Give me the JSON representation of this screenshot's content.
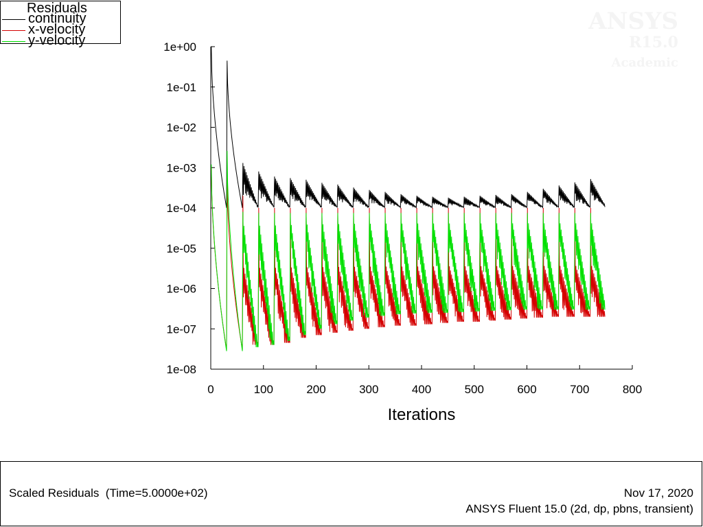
{
  "legend": {
    "title": "Residuals",
    "items": [
      {
        "label": "continuity",
        "color": "#000000"
      },
      {
        "label": "x-velocity",
        "color": "#d40000"
      },
      {
        "label": "y-velocity",
        "color": "#00e000"
      }
    ]
  },
  "watermark": {
    "brand": "ANSYS",
    "version": "R15.0",
    "edition": "Academic"
  },
  "footer": {
    "left": "Scaled Residuals  (Time=5.0000e+02)",
    "date": "Nov 17, 2020",
    "version": "ANSYS Fluent 15.0 (2d, dp, pbns, transient)"
  },
  "chart_data": {
    "type": "line",
    "xlabel": "Iterations",
    "ylabel": "",
    "xlim": [
      0,
      800
    ],
    "ylim": [
      1e-08,
      1
    ],
    "yscale": "log",
    "xticks": [
      0,
      100,
      200,
      300,
      400,
      500,
      600,
      700,
      800
    ],
    "yticks": [
      1,
      0.1,
      0.01,
      0.001,
      0.0001,
      1e-05,
      1e-06,
      1e-07,
      1e-08
    ],
    "ytick_labels": [
      "1e+00",
      "1e-01",
      "1e-02",
      "1e-03",
      "1e-04",
      "1e-05",
      "1e-06",
      "1e-07",
      "1e-08"
    ],
    "grid": false,
    "legend_position": "top-left",
    "time_steps": 25,
    "iterations_per_step": 30,
    "series": [
      {
        "name": "continuity",
        "color": "#000000",
        "step_peaks": [
          1,
          0.45,
          0.0013,
          0.0008,
          0.0006,
          0.00055,
          0.0005,
          0.00042,
          0.00038,
          0.00032,
          0.00028,
          0.00025,
          0.00022,
          0.0002,
          0.00019,
          0.00018,
          0.00019,
          0.0002,
          0.00021,
          0.00022,
          0.00025,
          0.0003,
          0.00036,
          0.00043,
          0.00052
        ],
        "step_troughs": [
          0.0001,
          0.0001,
          0.0001,
          0.0001,
          0.0001,
          0.0001,
          0.0001,
          0.0001,
          0.0001,
          0.0001,
          0.0001,
          0.0001,
          0.0001,
          0.0001,
          0.0001,
          0.0001,
          0.0001,
          0.0001,
          0.0001,
          0.0001,
          0.0001,
          0.0001,
          0.0001,
          0.0001,
          0.0001
        ],
        "sub_peak_range": [
          0.0003,
          0.0008
        ]
      },
      {
        "name": "x-velocity",
        "color": "#d40000",
        "step_peaks": [
          0.001,
          0.0006,
          0.0002,
          0.0001,
          0.0001,
          0.0001,
          0.0001,
          0.0001,
          0.0001,
          0.0001,
          0.0001,
          0.0001,
          0.0001,
          0.0001,
          0.0001,
          0.0001,
          0.0001,
          0.0001,
          0.0001,
          0.0001,
          0.0001,
          0.0001,
          0.0001,
          0.0001,
          0.0001
        ],
        "step_troughs": [
          3e-08,
          3e-08,
          4e-08,
          4e-08,
          4.5e-08,
          6e-08,
          7e-08,
          8e-08,
          9e-08,
          1e-07,
          1.1e-07,
          1.2e-07,
          1.2e-07,
          1.3e-07,
          1.4e-07,
          1.5e-07,
          1.5e-07,
          1.6e-07,
          1.7e-07,
          1.8e-07,
          1.9e-07,
          2e-07,
          2e-07,
          2e-07,
          2e-07
        ],
        "sub_peak_range": [
          1.5e-06,
          4.5e-06
        ]
      },
      {
        "name": "y-velocity",
        "color": "#00e000",
        "step_peaks": [
          0.0012,
          0.0026,
          8e-05,
          7.5e-05,
          7.5e-05,
          7.5e-05,
          7.5e-05,
          7.5e-05,
          7.5e-05,
          7.5e-05,
          7.5e-05,
          7.5e-05,
          7.5e-05,
          7.5e-05,
          7.5e-05,
          7.5e-05,
          7.5e-05,
          7.5e-05,
          7.5e-05,
          7.5e-05,
          7.5e-05,
          7.5e-05,
          7.5e-05,
          7.5e-05,
          7.5e-05
        ],
        "step_troughs": [
          2.8e-08,
          2.8e-08,
          3.5e-08,
          4e-08,
          5e-08,
          7e-08,
          1e-07,
          1.3e-07,
          1.6e-07,
          1.9e-07,
          2.1e-07,
          2.3e-07,
          2.4e-07,
          2.5e-07,
          2.5e-07,
          2.6e-07,
          2.7e-07,
          2.8e-07,
          2.9e-07,
          3e-07,
          3e-07,
          3e-07,
          3e-07,
          3e-07,
          3e-07
        ],
        "sub_peak_range": [
          3e-06,
          6e-05
        ]
      }
    ]
  }
}
